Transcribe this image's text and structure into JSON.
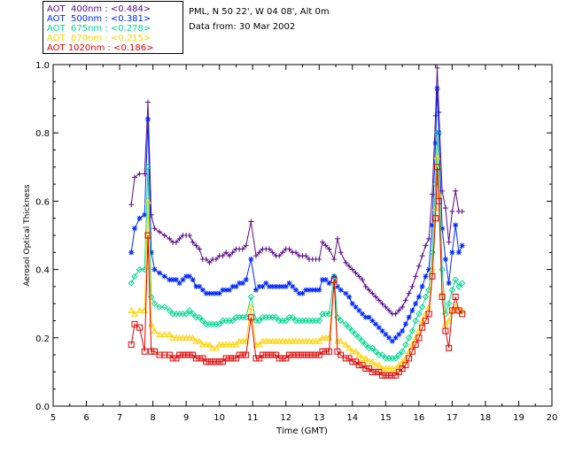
{
  "header": {
    "station": "PML, N 50 22', W 04 08', Alt 0m",
    "date_line": "Data from: 30 Mar 2002"
  },
  "legend": [
    {
      "text": "AOT  400nm : <0.484>",
      "color": "#5a0a8a"
    },
    {
      "text": "AOT  500nm : <0.381>",
      "color": "#0028ff"
    },
    {
      "text": "AOT  675nm : <0.278>",
      "color": "#00d890"
    },
    {
      "text": "AOT  870nm : <0.215>",
      "color": "#ffd200"
    },
    {
      "text": "AOT 1020nm : <0.186>",
      "color": "#e00000"
    }
  ],
  "chart_data": {
    "type": "line",
    "xlabel": "Time (GMT)",
    "ylabel": "Aerosol Optical Thickness",
    "xlim": [
      5,
      20
    ],
    "ylim": [
      0.0,
      1.0
    ],
    "xticks": [
      "5",
      "6",
      "7",
      "8",
      "9",
      "10",
      "11",
      "12",
      "13",
      "14",
      "15",
      "16",
      "17",
      "18",
      "19",
      "20"
    ],
    "yticks": [
      "0.0",
      "0.2",
      "0.4",
      "0.6",
      "0.8",
      "1.0"
    ],
    "x": [
      7.35,
      7.45,
      7.6,
      7.75,
      7.85,
      7.95,
      8.05,
      8.2,
      8.35,
      8.5,
      8.6,
      8.7,
      8.8,
      8.9,
      9.0,
      9.1,
      9.2,
      9.3,
      9.4,
      9.5,
      9.6,
      9.7,
      9.8,
      9.9,
      10.0,
      10.1,
      10.2,
      10.3,
      10.4,
      10.5,
      10.6,
      10.7,
      10.8,
      10.95,
      11.1,
      11.2,
      11.3,
      11.4,
      11.5,
      11.6,
      11.7,
      11.8,
      11.9,
      12.0,
      12.1,
      12.2,
      12.3,
      12.4,
      12.5,
      12.6,
      12.7,
      12.8,
      12.9,
      13.0,
      13.1,
      13.2,
      13.3,
      13.45,
      13.55,
      13.65,
      13.8,
      13.9,
      14.0,
      14.1,
      14.2,
      14.3,
      14.4,
      14.5,
      14.6,
      14.7,
      14.8,
      14.9,
      15.0,
      15.1,
      15.2,
      15.3,
      15.4,
      15.5,
      15.6,
      15.7,
      15.8,
      15.9,
      16.0,
      16.1,
      16.2,
      16.3,
      16.4,
      16.5,
      16.55,
      16.6,
      16.7,
      16.8,
      16.9,
      17.0,
      17.1,
      17.2,
      17.3
    ],
    "series": [
      {
        "name": "AOT  400nm : <0.484>",
        "color": "#5a0a8a",
        "marker": "plus",
        "values": [
          0.59,
          0.67,
          0.68,
          0.68,
          0.89,
          0.56,
          0.52,
          0.51,
          0.5,
          0.49,
          0.48,
          0.48,
          0.49,
          0.5,
          0.5,
          0.5,
          0.48,
          0.47,
          0.46,
          0.43,
          0.43,
          0.42,
          0.43,
          0.43,
          0.44,
          0.44,
          0.45,
          0.44,
          0.45,
          0.46,
          0.46,
          0.46,
          0.47,
          0.54,
          0.44,
          0.45,
          0.46,
          0.46,
          0.46,
          0.45,
          0.44,
          0.44,
          0.45,
          0.46,
          0.46,
          0.45,
          0.45,
          0.44,
          0.44,
          0.44,
          0.43,
          0.43,
          0.43,
          0.43,
          0.48,
          0.47,
          0.46,
          0.43,
          0.49,
          0.45,
          0.42,
          0.41,
          0.4,
          0.39,
          0.38,
          0.37,
          0.35,
          0.34,
          0.33,
          0.32,
          0.31,
          0.3,
          0.29,
          0.28,
          0.27,
          0.27,
          0.28,
          0.29,
          0.31,
          0.33,
          0.35,
          0.38,
          0.41,
          0.44,
          0.47,
          0.49,
          0.62,
          0.85,
          0.99,
          0.86,
          0.63,
          0.58,
          0.48,
          0.57,
          0.63,
          0.57,
          0.57
        ]
      },
      {
        "name": "AOT  500nm : <0.381>",
        "color": "#0028ff",
        "marker": "star",
        "values": [
          0.45,
          0.52,
          0.55,
          0.56,
          0.84,
          0.45,
          0.4,
          0.39,
          0.38,
          0.37,
          0.37,
          0.37,
          0.36,
          0.37,
          0.38,
          0.38,
          0.37,
          0.35,
          0.35,
          0.34,
          0.33,
          0.33,
          0.33,
          0.33,
          0.33,
          0.34,
          0.34,
          0.34,
          0.35,
          0.35,
          0.36,
          0.36,
          0.37,
          0.43,
          0.34,
          0.35,
          0.35,
          0.36,
          0.35,
          0.35,
          0.35,
          0.35,
          0.35,
          0.35,
          0.36,
          0.35,
          0.34,
          0.33,
          0.33,
          0.34,
          0.34,
          0.34,
          0.34,
          0.34,
          0.37,
          0.37,
          0.36,
          0.38,
          0.35,
          0.34,
          0.33,
          0.32,
          0.3,
          0.29,
          0.28,
          0.27,
          0.26,
          0.26,
          0.25,
          0.24,
          0.23,
          0.22,
          0.21,
          0.2,
          0.19,
          0.2,
          0.21,
          0.22,
          0.24,
          0.26,
          0.28,
          0.3,
          0.32,
          0.35,
          0.38,
          0.4,
          0.53,
          0.77,
          0.93,
          0.8,
          0.52,
          0.43,
          0.36,
          0.45,
          0.53,
          0.45,
          0.47
        ]
      },
      {
        "name": "AOT  675nm : <0.278>",
        "color": "#00d890",
        "marker": "diamond",
        "values": [
          0.36,
          0.38,
          0.4,
          0.4,
          0.7,
          0.32,
          0.3,
          0.29,
          0.29,
          0.28,
          0.27,
          0.27,
          0.27,
          0.27,
          0.27,
          0.28,
          0.27,
          0.26,
          0.26,
          0.25,
          0.24,
          0.24,
          0.24,
          0.24,
          0.24,
          0.25,
          0.25,
          0.25,
          0.25,
          0.26,
          0.26,
          0.26,
          0.26,
          0.32,
          0.25,
          0.25,
          0.26,
          0.26,
          0.26,
          0.26,
          0.26,
          0.25,
          0.25,
          0.25,
          0.26,
          0.26,
          0.25,
          0.25,
          0.25,
          0.25,
          0.25,
          0.25,
          0.25,
          0.25,
          0.27,
          0.27,
          0.27,
          0.38,
          0.26,
          0.25,
          0.24,
          0.23,
          0.22,
          0.21,
          0.2,
          0.19,
          0.18,
          0.17,
          0.17,
          0.16,
          0.15,
          0.15,
          0.14,
          0.14,
          0.14,
          0.14,
          0.15,
          0.16,
          0.18,
          0.2,
          0.22,
          0.25,
          0.27,
          0.29,
          0.32,
          0.34,
          0.45,
          0.65,
          0.8,
          0.7,
          0.4,
          0.27,
          0.3,
          0.34,
          0.37,
          0.35,
          0.36
        ]
      },
      {
        "name": "AOT  870nm : <0.215>",
        "color": "#ffd200",
        "marker": "triangle",
        "values": [
          0.28,
          0.27,
          0.28,
          0.28,
          0.6,
          0.24,
          0.22,
          0.21,
          0.21,
          0.21,
          0.2,
          0.2,
          0.2,
          0.2,
          0.2,
          0.2,
          0.2,
          0.19,
          0.19,
          0.18,
          0.18,
          0.18,
          0.17,
          0.17,
          0.18,
          0.18,
          0.18,
          0.18,
          0.18,
          0.18,
          0.19,
          0.19,
          0.19,
          0.29,
          0.18,
          0.18,
          0.19,
          0.19,
          0.19,
          0.19,
          0.19,
          0.19,
          0.19,
          0.19,
          0.19,
          0.19,
          0.19,
          0.19,
          0.19,
          0.19,
          0.19,
          0.19,
          0.19,
          0.19,
          0.2,
          0.2,
          0.2,
          0.36,
          0.19,
          0.19,
          0.18,
          0.17,
          0.16,
          0.16,
          0.15,
          0.14,
          0.14,
          0.13,
          0.13,
          0.12,
          0.12,
          0.11,
          0.11,
          0.11,
          0.11,
          0.11,
          0.12,
          0.13,
          0.14,
          0.16,
          0.18,
          0.2,
          0.22,
          0.25,
          0.27,
          0.29,
          0.4,
          0.58,
          0.73,
          0.62,
          0.33,
          0.24,
          0.25,
          0.28,
          0.29,
          0.28,
          0.28
        ]
      },
      {
        "name": "AOT 1020nm : <0.186>",
        "color": "#e00000",
        "marker": "square",
        "values": [
          0.18,
          0.24,
          0.23,
          0.16,
          0.5,
          0.16,
          0.16,
          0.15,
          0.15,
          0.15,
          0.14,
          0.14,
          0.15,
          0.15,
          0.15,
          0.15,
          0.15,
          0.14,
          0.14,
          0.14,
          0.13,
          0.13,
          0.13,
          0.13,
          0.13,
          0.13,
          0.14,
          0.14,
          0.14,
          0.14,
          0.15,
          0.15,
          0.15,
          0.26,
          0.14,
          0.14,
          0.15,
          0.15,
          0.15,
          0.15,
          0.15,
          0.14,
          0.14,
          0.14,
          0.15,
          0.15,
          0.15,
          0.15,
          0.15,
          0.15,
          0.15,
          0.15,
          0.15,
          0.15,
          0.16,
          0.16,
          0.16,
          0.37,
          0.16,
          0.15,
          0.14,
          0.14,
          0.13,
          0.13,
          0.12,
          0.12,
          0.11,
          0.11,
          0.1,
          0.1,
          0.1,
          0.09,
          0.09,
          0.09,
          0.09,
          0.09,
          0.1,
          0.11,
          0.12,
          0.14,
          0.16,
          0.18,
          0.2,
          0.23,
          0.25,
          0.27,
          0.38,
          0.55,
          0.7,
          0.6,
          0.32,
          0.22,
          0.17,
          0.28,
          0.32,
          0.28,
          0.27
        ]
      }
    ]
  }
}
